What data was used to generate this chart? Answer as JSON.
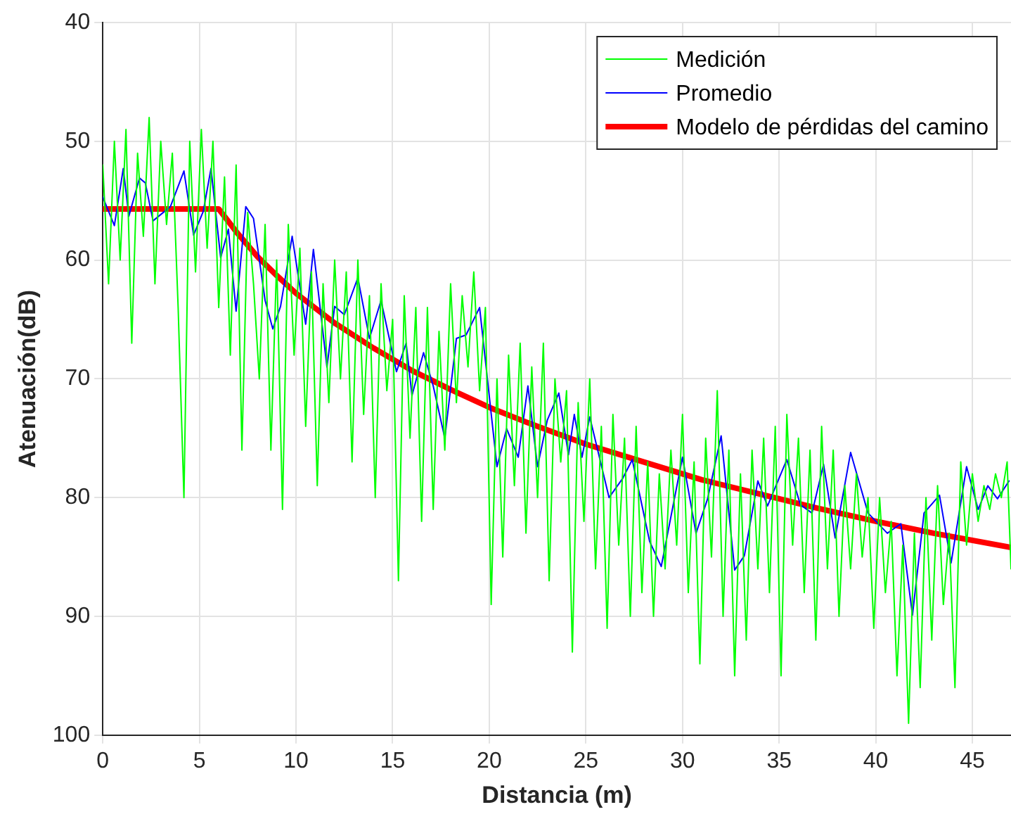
{
  "chart_data": {
    "type": "line",
    "xlabel": "Distancia (m)",
    "ylabel": "Atenuación(dB)",
    "xlim": [
      0,
      47
    ],
    "xticks": [
      0,
      5,
      10,
      15,
      20,
      25,
      30,
      35,
      40,
      45
    ],
    "ylim": [
      100,
      40
    ],
    "yticks": [
      40,
      50,
      60,
      70,
      80,
      90,
      100
    ],
    "grid": true,
    "legend": "top right",
    "line_style": "solid",
    "marker": "none",
    "series": [
      {
        "name": "Medición",
        "color": "#00ff00",
        "x": [
          0,
          0.3,
          0.6,
          0.9,
          1.2,
          1.5,
          1.8,
          2.1,
          2.4,
          2.7,
          3.0,
          3.3,
          3.6,
          3.9,
          4.2,
          4.5,
          4.8,
          5.1,
          5.4,
          5.7,
          6.0,
          6.3,
          6.6,
          6.9,
          7.2,
          7.5,
          7.8,
          8.1,
          8.4,
          8.7,
          9.0,
          9.3,
          9.6,
          9.9,
          10.2,
          10.5,
          10.8,
          11.1,
          11.4,
          11.7,
          12.0,
          12.3,
          12.6,
          12.9,
          13.2,
          13.5,
          13.8,
          14.1,
          14.4,
          14.7,
          15.0,
          15.3,
          15.6,
          15.9,
          16.2,
          16.5,
          16.8,
          17.1,
          17.4,
          17.7,
          18.0,
          18.3,
          18.6,
          18.9,
          19.2,
          19.5,
          19.8,
          20.1,
          20.4,
          20.7,
          21.0,
          21.3,
          21.6,
          21.9,
          22.2,
          22.5,
          22.8,
          23.1,
          23.4,
          23.7,
          24.0,
          24.3,
          24.6,
          24.9,
          25.2,
          25.5,
          25.8,
          26.1,
          26.4,
          26.7,
          27.0,
          27.3,
          27.6,
          27.9,
          28.2,
          28.5,
          28.8,
          29.1,
          29.4,
          29.7,
          30.0,
          30.3,
          30.6,
          30.9,
          31.2,
          31.5,
          31.8,
          32.1,
          32.4,
          32.7,
          33.0,
          33.3,
          33.6,
          33.9,
          34.2,
          34.5,
          34.8,
          35.1,
          35.4,
          35.7,
          36.0,
          36.3,
          36.6,
          36.9,
          37.2,
          37.5,
          37.8,
          38.1,
          38.4,
          38.7,
          39.0,
          39.3,
          39.6,
          39.9,
          40.2,
          40.5,
          40.8,
          41.1,
          41.4,
          41.7,
          42.0,
          42.3,
          42.6,
          42.9,
          43.2,
          43.5,
          43.8,
          44.1,
          44.4,
          44.7,
          45.0,
          45.3,
          45.6,
          45.9,
          46.2,
          46.5,
          46.8,
          47.0
        ],
        "values": [
          52,
          62,
          50,
          60,
          49,
          67,
          51,
          58,
          48,
          62,
          50,
          57,
          51,
          64,
          80,
          50,
          61,
          49,
          59,
          50,
          64,
          53,
          68,
          52,
          76,
          56,
          62,
          70,
          57,
          76,
          60,
          81,
          57,
          68,
          59,
          74,
          61,
          79,
          62,
          72,
          60,
          70,
          61,
          77,
          60,
          73,
          63,
          80,
          62,
          71,
          65,
          87,
          63,
          75,
          64,
          82,
          64,
          81,
          66,
          76,
          62,
          72,
          63,
          69,
          61,
          71,
          64,
          89,
          70,
          85,
          68,
          79,
          67,
          83,
          69,
          80,
          67,
          87,
          70,
          77,
          71,
          93,
          72,
          82,
          70,
          86,
          74,
          91,
          73,
          84,
          75,
          90,
          74,
          88,
          77,
          90,
          78,
          86,
          76,
          84,
          73,
          88,
          77,
          94,
          75,
          85,
          71,
          90,
          76,
          95,
          78,
          92,
          76,
          86,
          75,
          88,
          74,
          95,
          73,
          84,
          75,
          88,
          76,
          92,
          74,
          86,
          76,
          90,
          79,
          86,
          78,
          85,
          80,
          91,
          80,
          88,
          82,
          95,
          84,
          99,
          83,
          96,
          80,
          92,
          79,
          89,
          83,
          96,
          77,
          84,
          78,
          82,
          79,
          81,
          78,
          80,
          77,
          86
        ]
      },
      {
        "name": "Promedio",
        "color": "#0000ff",
        "x": [
          0,
          0.6,
          1.06,
          1.35,
          1.9,
          2.2,
          2.6,
          3.5,
          4.2,
          4.7,
          5.2,
          5.6,
          6.1,
          6.5,
          6.9,
          7.4,
          7.8,
          8.4,
          8.8,
          9.2,
          9.8,
          10.5,
          10.9,
          11.6,
          12.0,
          12.5,
          13.2,
          13.8,
          14.4,
          15.2,
          15.7,
          16.0,
          16.6,
          17.1,
          17.7,
          18.3,
          18.8,
          19.5,
          20.4,
          20.9,
          21.5,
          22.0,
          22.5,
          23.0,
          23.6,
          24.1,
          24.4,
          24.8,
          25.2,
          26.2,
          26.9,
          27.4,
          28.3,
          28.9,
          30.0,
          30.7,
          31.3,
          32.0,
          32.7,
          33.2,
          33.9,
          34.4,
          35.4,
          36.1,
          36.7,
          37.3,
          37.9,
          38.7,
          39.6,
          40.6,
          41.3,
          41.9,
          42.5,
          43.3,
          43.9,
          44.7,
          45.3,
          45.8,
          46.3,
          46.9
        ],
        "values": [
          54.7,
          57.1,
          52.3,
          56.3,
          53.1,
          53.5,
          56.7,
          55.5,
          52.5,
          57.9,
          55.9,
          52.3,
          59.8,
          57.4,
          64.3,
          55.5,
          56.5,
          63.4,
          65.8,
          63.9,
          58.0,
          65.4,
          59.1,
          69.0,
          63.9,
          64.6,
          61.5,
          66.6,
          63.4,
          69.4,
          67.0,
          71.4,
          67.8,
          70.6,
          75.0,
          66.6,
          66.3,
          64.0,
          77.4,
          74.2,
          76.6,
          70.6,
          77.4,
          73.5,
          71.2,
          76.4,
          73.0,
          76.6,
          73.2,
          80.0,
          78.4,
          76.8,
          83.7,
          85.8,
          76.6,
          83.0,
          80.1,
          74.8,
          86.1,
          84.9,
          78.6,
          80.7,
          76.8,
          80.6,
          81.3,
          77.2,
          83.4,
          76.2,
          81.3,
          83.0,
          82.2,
          89.9,
          81.3,
          79.8,
          85.5,
          77.4,
          81.0,
          79.0,
          80.1,
          78.6
        ]
      },
      {
        "name": "Modelo de pérdidas del camino",
        "color": "#ff0000",
        "x": [
          0,
          6,
          7,
          8,
          9,
          10,
          12,
          14,
          16,
          18,
          20,
          22,
          25,
          28,
          31,
          34,
          37,
          40,
          43,
          47
        ],
        "values": [
          55.7,
          55.7,
          57.8,
          59.7,
          61.3,
          62.8,
          65.3,
          67.4,
          69.3,
          70.9,
          72.4,
          73.7,
          75.5,
          77.0,
          78.5,
          79.7,
          80.9,
          82.0,
          83.0,
          84.2
        ]
      }
    ]
  }
}
